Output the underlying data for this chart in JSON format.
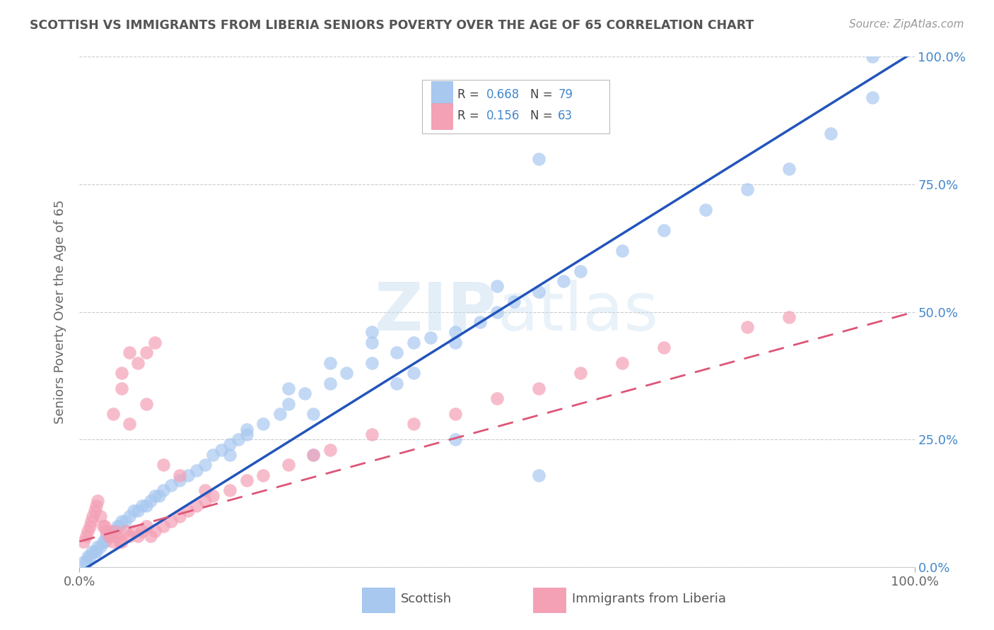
{
  "title": "SCOTTISH VS IMMIGRANTS FROM LIBERIA SENIORS POVERTY OVER THE AGE OF 65 CORRELATION CHART",
  "source_text": "Source: ZipAtlas.com",
  "ylabel": "Seniors Poverty Over the Age of 65",
  "xlim": [
    0,
    1.0
  ],
  "ylim": [
    0,
    1.0
  ],
  "ytick_vals": [
    0.0,
    0.25,
    0.5,
    0.75,
    1.0
  ],
  "ytick_labels": [
    "0.0%",
    "25.0%",
    "50.0%",
    "75.0%",
    "100.0%"
  ],
  "xtick_labels": [
    "0.0%",
    "100.0%"
  ],
  "watermark": "ZIPatlas",
  "legend_r1": "R = 0.668",
  "legend_n1": "N = 79",
  "legend_r2": "R = 0.156",
  "legend_n2": "N = 63",
  "scottish_color": "#a8c8f0",
  "liberia_color": "#f4a0b5",
  "scottish_line_color": "#2255bb",
  "liberia_line_color": "#dd5577",
  "background_color": "#ffffff",
  "grid_color": "#cccccc",
  "title_color": "#555555",
  "right_tick_color": "#4488cc",
  "scottish_x": [
    0.005,
    0.008,
    0.01,
    0.012,
    0.015,
    0.018,
    0.02,
    0.022,
    0.025,
    0.028,
    0.03,
    0.032,
    0.035,
    0.038,
    0.04,
    0.042,
    0.045,
    0.048,
    0.05,
    0.055,
    0.06,
    0.065,
    0.07,
    0.075,
    0.08,
    0.085,
    0.09,
    0.095,
    0.1,
    0.11,
    0.12,
    0.13,
    0.14,
    0.15,
    0.16,
    0.17,
    0.18,
    0.19,
    0.2,
    0.22,
    0.24,
    0.25,
    0.27,
    0.3,
    0.32,
    0.35,
    0.38,
    0.4,
    0.42,
    0.45,
    0.48,
    0.5,
    0.52,
    0.55,
    0.58,
    0.6,
    0.65,
    0.7,
    0.75,
    0.8,
    0.85,
    0.9,
    0.95,
    0.3,
    0.35,
    0.25,
    0.2,
    0.5,
    0.4,
    0.28,
    0.18,
    0.35,
    0.55,
    0.45,
    0.28,
    0.38,
    0.45,
    0.55,
    0.95
  ],
  "scottish_y": [
    0.01,
    0.01,
    0.02,
    0.02,
    0.03,
    0.03,
    0.03,
    0.04,
    0.04,
    0.05,
    0.05,
    0.06,
    0.06,
    0.06,
    0.07,
    0.07,
    0.08,
    0.08,
    0.09,
    0.09,
    0.1,
    0.11,
    0.11,
    0.12,
    0.12,
    0.13,
    0.14,
    0.14,
    0.15,
    0.16,
    0.17,
    0.18,
    0.19,
    0.2,
    0.22,
    0.23,
    0.24,
    0.25,
    0.27,
    0.28,
    0.3,
    0.32,
    0.34,
    0.36,
    0.38,
    0.4,
    0.42,
    0.44,
    0.45,
    0.46,
    0.48,
    0.5,
    0.52,
    0.54,
    0.56,
    0.58,
    0.62,
    0.66,
    0.7,
    0.74,
    0.78,
    0.85,
    0.92,
    0.4,
    0.44,
    0.35,
    0.26,
    0.55,
    0.38,
    0.3,
    0.22,
    0.46,
    0.8,
    0.44,
    0.22,
    0.36,
    0.25,
    0.18,
    1.0
  ],
  "liberia_x": [
    0.005,
    0.008,
    0.01,
    0.012,
    0.014,
    0.016,
    0.018,
    0.02,
    0.022,
    0.025,
    0.028,
    0.03,
    0.032,
    0.035,
    0.038,
    0.04,
    0.042,
    0.045,
    0.048,
    0.05,
    0.055,
    0.06,
    0.065,
    0.07,
    0.075,
    0.08,
    0.085,
    0.09,
    0.1,
    0.11,
    0.12,
    0.13,
    0.14,
    0.15,
    0.16,
    0.18,
    0.2,
    0.22,
    0.25,
    0.28,
    0.3,
    0.35,
    0.4,
    0.45,
    0.5,
    0.55,
    0.6,
    0.65,
    0.7,
    0.8,
    0.85,
    0.05,
    0.06,
    0.07,
    0.08,
    0.09,
    0.04,
    0.05,
    0.06,
    0.08,
    0.1,
    0.12,
    0.15
  ],
  "liberia_y": [
    0.05,
    0.06,
    0.07,
    0.08,
    0.09,
    0.1,
    0.11,
    0.12,
    0.13,
    0.1,
    0.08,
    0.08,
    0.07,
    0.06,
    0.06,
    0.05,
    0.07,
    0.06,
    0.05,
    0.05,
    0.07,
    0.06,
    0.07,
    0.06,
    0.07,
    0.08,
    0.06,
    0.07,
    0.08,
    0.09,
    0.1,
    0.11,
    0.12,
    0.13,
    0.14,
    0.15,
    0.17,
    0.18,
    0.2,
    0.22,
    0.23,
    0.26,
    0.28,
    0.3,
    0.33,
    0.35,
    0.38,
    0.4,
    0.43,
    0.47,
    0.49,
    0.38,
    0.42,
    0.4,
    0.42,
    0.44,
    0.3,
    0.35,
    0.28,
    0.32,
    0.2,
    0.18,
    0.15
  ]
}
